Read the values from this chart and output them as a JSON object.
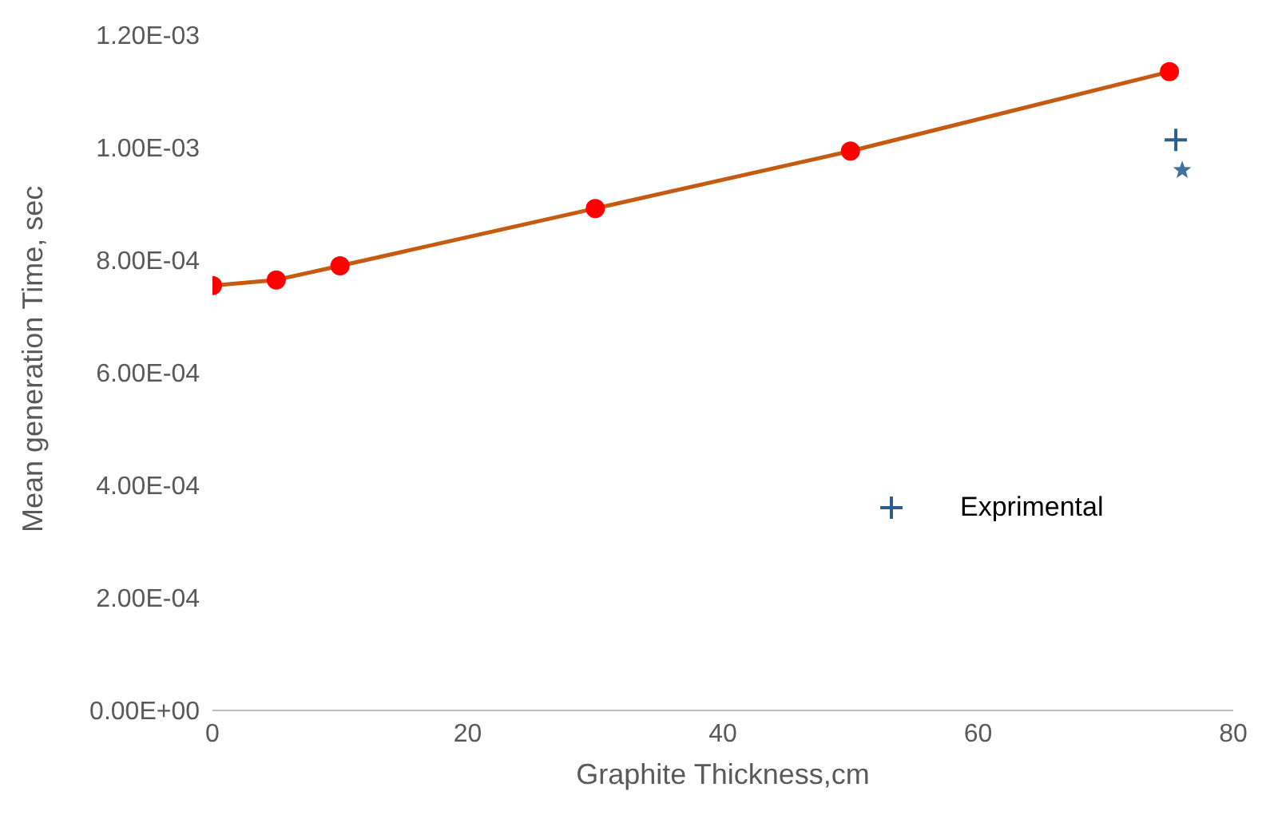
{
  "chart_data": {
    "type": "line",
    "xlabel": "Graphite Thickness,cm",
    "ylabel": "Mean generation Time, sec",
    "series": [
      {
        "color": "#c55a11",
        "colors": [
          "#ff0000",
          "#ff0000",
          "#ff0000",
          "#ff0000",
          "#ff0000",
          "#ff0000"
        ],
        "marker": "circle",
        "x": [
          0,
          5,
          10,
          30,
          50,
          75
        ],
        "values": [
          0.000755,
          0.000765,
          0.00079,
          0.000892,
          0.000994,
          0.001135
        ]
      },
      {
        "type": "scatter",
        "name": "Exprimental",
        "color": "#2e5f8a",
        "marker": "cross",
        "x": [
          75.5
        ],
        "values": [
          0.001014
        ]
      },
      {
        "type": "scatter",
        "color": "#41719c",
        "marker": "star",
        "x": [
          76
        ],
        "values": [
          0.00096
        ]
      }
    ],
    "xlim": [
      0,
      80
    ],
    "xticks": [
      0,
      20,
      40,
      60,
      80
    ],
    "ylim": [
      0,
      0.0012
    ],
    "yticks": [
      {
        "value": 0,
        "label": "0.00E+00"
      },
      {
        "value": 0.0002,
        "label": "2.00E-04"
      },
      {
        "value": 0.0004,
        "label": "4.00E-04"
      },
      {
        "value": 0.0006,
        "label": "6.00E-04"
      },
      {
        "value": 0.0008,
        "label": "8.00E-04"
      },
      {
        "value": 0.001,
        "label": "1.00E-03"
      },
      {
        "value": 0.0012,
        "label": "1.20E-03"
      }
    ],
    "grid": false,
    "legend": "right"
  }
}
